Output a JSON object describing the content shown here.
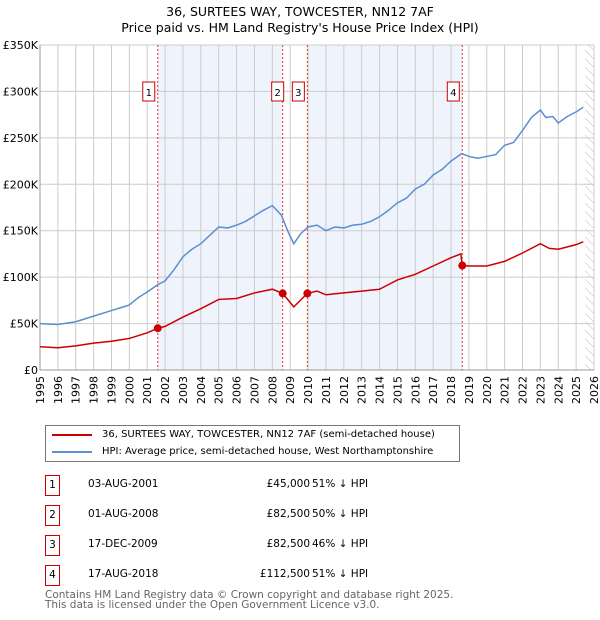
{
  "title": "36, SURTEES WAY, TOWCESTER, NN12 7AF",
  "subtitle": "Price paid vs. HM Land Registry's House Price Index (HPI)",
  "chart_data": {
    "type": "line",
    "ylim": [
      0,
      350000
    ],
    "xlim": [
      1995,
      2026
    ],
    "y_ticks": [
      0,
      50000,
      100000,
      150000,
      200000,
      250000,
      300000,
      350000
    ],
    "y_tick_labels": [
      "£0",
      "£50K",
      "£100K",
      "£150K",
      "£200K",
      "£250K",
      "£300K",
      "£350K"
    ],
    "x_ticks": [
      1995,
      1996,
      1997,
      1998,
      1999,
      2000,
      2001,
      2002,
      2003,
      2004,
      2005,
      2006,
      2007,
      2008,
      2009,
      2010,
      2011,
      2012,
      2013,
      2014,
      2015,
      2016,
      2017,
      2018,
      2019,
      2020,
      2021,
      2022,
      2023,
      2024,
      2025,
      2026
    ],
    "grid": true,
    "shaded_ranges": [
      [
        2001.59,
        2008.58
      ],
      [
        2009.96,
        2018.63
      ]
    ],
    "projection_from": 2025.5,
    "series": [
      {
        "name": "36, SURTEES WAY, TOWCESTER, NN12 7AF (semi-detached house)",
        "color": "#cc0000",
        "x": [
          1995,
          1996,
          1997,
          1998,
          1999,
          2000,
          2001,
          2001.59,
          2002,
          2003,
          2004,
          2005,
          2006,
          2007,
          2008,
          2008.58,
          2009.2,
          2009.96,
          2010.5,
          2011,
          2012,
          2013,
          2014,
          2015,
          2016,
          2017,
          2018,
          2018.55,
          2018.63,
          2019,
          2020,
          2021,
          2022,
          2023,
          2023.5,
          2024,
          2025,
          2025.4
        ],
        "y": [
          25000,
          24000,
          26000,
          29000,
          31000,
          34000,
          40000,
          45000,
          47000,
          57000,
          66000,
          76000,
          77000,
          83000,
          87000,
          82500,
          68000,
          82500,
          85000,
          81000,
          83000,
          85000,
          87000,
          97000,
          103000,
          112000,
          121000,
          125000,
          112500,
          112000,
          112000,
          117000,
          126000,
          136000,
          131000,
          130000,
          135000,
          138000
        ]
      },
      {
        "name": "HPI: Average price, semi-detached house, West Northamptonshire",
        "color": "#5b8fd0",
        "x": [
          1995,
          1996,
          1997,
          1998,
          1999,
          2000,
          2000.5,
          2001,
          2001.6,
          2002,
          2002.5,
          2003,
          2003.5,
          2004,
          2004.5,
          2005,
          2005.5,
          2006,
          2006.5,
          2007,
          2007.5,
          2008,
          2008.5,
          2008.9,
          2009.2,
          2009.6,
          2010,
          2010.5,
          2011,
          2011.5,
          2012,
          2012.5,
          2013,
          2013.5,
          2014,
          2014.5,
          2015,
          2015.5,
          2016,
          2016.5,
          2017,
          2017.5,
          2018,
          2018.6,
          2019,
          2019.5,
          2020,
          2020.5,
          2021,
          2021.5,
          2022,
          2022.5,
          2023,
          2023.3,
          2023.7,
          2024,
          2024.5,
          2025,
          2025.4
        ],
        "y": [
          50000,
          49000,
          52000,
          58000,
          64000,
          70000,
          78000,
          84000,
          92000,
          96000,
          108000,
          122000,
          130000,
          136000,
          145000,
          154000,
          153000,
          156000,
          160000,
          166000,
          172000,
          177000,
          167000,
          148000,
          136000,
          147000,
          154000,
          156000,
          150000,
          154000,
          153000,
          156000,
          157000,
          160000,
          165000,
          172000,
          180000,
          185000,
          195000,
          200000,
          210000,
          216000,
          225000,
          233000,
          230000,
          228000,
          230000,
          232000,
          242000,
          245000,
          258000,
          272000,
          280000,
          272000,
          273000,
          266000,
          273000,
          278000,
          283000
        ]
      }
    ],
    "sales": [
      {
        "label": "1",
        "x": 2001.59,
        "y": 45000,
        "date": "03-AUG-2001",
        "price": "£45,000",
        "hpi": "51% ↓ HPI"
      },
      {
        "label": "2",
        "x": 2008.58,
        "y": 82500,
        "date": "01-AUG-2008",
        "price": "£82,500",
        "hpi": "50% ↓ HPI"
      },
      {
        "label": "3",
        "x": 2009.96,
        "y": 82500,
        "date": "17-DEC-2009",
        "price": "£82,500",
        "hpi": "46% ↓ HPI"
      },
      {
        "label": "4",
        "x": 2018.63,
        "y": 112500,
        "date": "17-AUG-2018",
        "price": "£112,500",
        "hpi": "51% ↓ HPI"
      }
    ]
  },
  "footer": [
    "Contains HM Land Registry data © Crown copyright and database right 2025.",
    "This data is licensed under the Open Government Licence v3.0."
  ]
}
